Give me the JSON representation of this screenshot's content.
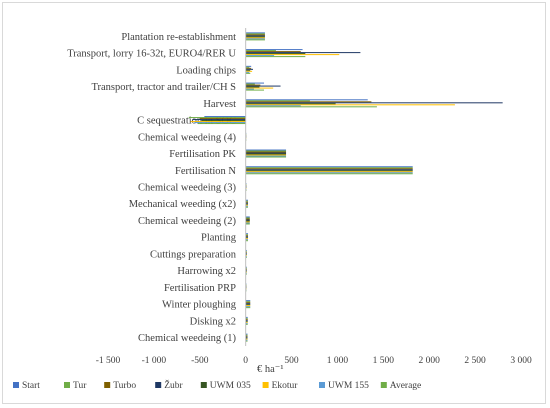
{
  "chart_data": {
    "type": "bar",
    "orientation": "horizontal",
    "title": "",
    "xlabel": "€ ha⁻¹",
    "ylabel": "",
    "xlim": [
      -1500,
      3000
    ],
    "xticks": [
      -1500,
      -1000,
      -500,
      0,
      500,
      1000,
      1500,
      2000,
      2500,
      3000
    ],
    "xtick_labels": [
      "-1 500",
      "-1 000",
      "-500",
      "0",
      "500",
      "1 000",
      "1 500",
      "2 000",
      "2 500",
      "3 000"
    ],
    "grid": false,
    "legend_position": "bottom",
    "categories": [
      "Plantation re-establishment",
      "Transport, lorry 16-32t, EURO4/RER U",
      "Loading chips",
      "Transport, tractor and trailer/CH S",
      "Harvest",
      "C sequestration in SOC",
      "Chemical weedeing (4)",
      "Fertilisation PK",
      "Fertilisation N",
      "Chemical weedeing (3)",
      "Mechanical weeding (x2)",
      "Chemical weedeing (2)",
      "Planting",
      "Cuttings preparation",
      "Harrowing x2",
      "Fertilisation PRP",
      "Winter ploughing",
      "Disking x2",
      "Chemical weedeing (1)"
    ],
    "series": [
      {
        "name": "Start",
        "color": "#4472c4",
        "values": [
          210,
          620,
          60,
          200,
          1330,
          -450,
          5,
          440,
          1820,
          8,
          25,
          45,
          25,
          12,
          12,
          8,
          50,
          22,
          20
        ]
      },
      {
        "name": "Tur",
        "color": "#70ad47",
        "values": [
          210,
          330,
          40,
          100,
          700,
          -620,
          5,
          440,
          1820,
          8,
          25,
          45,
          25,
          12,
          12,
          8,
          50,
          22,
          20
        ]
      },
      {
        "name": "Turbo",
        "color": "#7f6000",
        "values": [
          210,
          600,
          60,
          160,
          1370,
          -500,
          5,
          440,
          1820,
          8,
          25,
          45,
          25,
          12,
          12,
          8,
          50,
          22,
          20
        ]
      },
      {
        "name": "Žubr",
        "color": "#1f3864",
        "values": [
          210,
          1250,
          80,
          380,
          2800,
          -580,
          5,
          440,
          1820,
          8,
          25,
          45,
          25,
          12,
          12,
          8,
          50,
          22,
          20
        ]
      },
      {
        "name": "UWM 035",
        "color": "#375623",
        "values": [
          210,
          650,
          50,
          150,
          980,
          -480,
          5,
          440,
          1820,
          8,
          25,
          45,
          25,
          12,
          12,
          8,
          50,
          22,
          20
        ]
      },
      {
        "name": "Ekotur",
        "color": "#ffc000",
        "values": [
          210,
          1020,
          70,
          300,
          2280,
          -600,
          5,
          440,
          1820,
          8,
          25,
          45,
          25,
          12,
          12,
          8,
          50,
          22,
          20
        ]
      },
      {
        "name": "UWM 155",
        "color": "#5b9bd5",
        "values": [
          210,
          310,
          40,
          90,
          600,
          -560,
          5,
          440,
          1820,
          8,
          25,
          45,
          25,
          12,
          12,
          8,
          50,
          22,
          20
        ]
      },
      {
        "name": "Average",
        "color": "#70ad47",
        "values": [
          210,
          650,
          50,
          200,
          1430,
          -520,
          5,
          440,
          1820,
          8,
          25,
          45,
          25,
          12,
          12,
          8,
          50,
          22,
          20
        ]
      }
    ]
  }
}
